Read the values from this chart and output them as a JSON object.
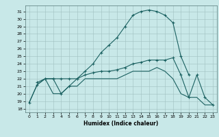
{
  "xlabel": "Humidex (Indice chaleur)",
  "background_color": "#c8e8e8",
  "grid_color": "#a0c0c0",
  "line_color": "#1a6060",
  "xlim": [
    -0.5,
    23.5
  ],
  "ylim": [
    17.5,
    31.8
  ],
  "xticks": [
    0,
    1,
    2,
    3,
    4,
    5,
    6,
    7,
    8,
    9,
    10,
    11,
    12,
    13,
    14,
    15,
    16,
    17,
    18,
    19,
    20,
    21,
    22,
    23
  ],
  "yticks": [
    18,
    19,
    20,
    21,
    22,
    23,
    24,
    25,
    26,
    27,
    28,
    29,
    30,
    31
  ],
  "line1_x": [
    1,
    2,
    3,
    4,
    5,
    6,
    7,
    8,
    9,
    10,
    11,
    12,
    13,
    14,
    15,
    16,
    17,
    18,
    19,
    20
  ],
  "line1_y": [
    21.5,
    22,
    22,
    20,
    21,
    22,
    23,
    24,
    25.5,
    26.5,
    27.5,
    29,
    30.5,
    31,
    31.2,
    31,
    30.5,
    29.5,
    25,
    22.5
  ],
  "line2_x": [
    0,
    1,
    2,
    3,
    4,
    5,
    6,
    7,
    8,
    9,
    10,
    11,
    12,
    13,
    14,
    15,
    16,
    17,
    18,
    19,
    20,
    21,
    22,
    23
  ],
  "line2_y": [
    18.8,
    21.2,
    22,
    22,
    22,
    22,
    22,
    22.5,
    22.8,
    23,
    23,
    23.2,
    23.5,
    24,
    24.2,
    24.5,
    24.5,
    24.5,
    24.8,
    22.5,
    19.5,
    22.5,
    19.5,
    18.5
  ],
  "line3_x": [
    0,
    1,
    2,
    3,
    4,
    5,
    6,
    7,
    8,
    9,
    10,
    11,
    12,
    13,
    14,
    15,
    16,
    17,
    18,
    19,
    20,
    21,
    22,
    23
  ],
  "line3_y": [
    18.8,
    21.2,
    22,
    20,
    20,
    21,
    21,
    22,
    22,
    22,
    22,
    22,
    22.5,
    23,
    23,
    23,
    23.5,
    23,
    22,
    20,
    19.5,
    19.5,
    18.5,
    18.5
  ]
}
